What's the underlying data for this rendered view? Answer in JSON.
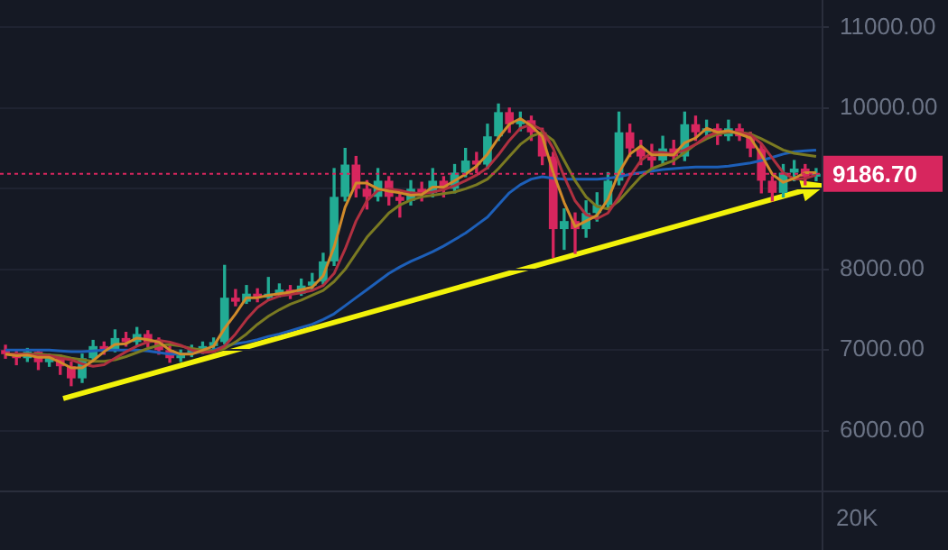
{
  "chart_data": {
    "type": "candlestick",
    "categories": [
      null,
      null,
      null,
      null,
      null,
      null,
      null,
      null,
      null,
      null,
      null,
      null,
      null,
      null,
      null,
      null,
      null,
      null,
      null,
      null,
      null,
      null,
      null,
      null,
      null,
      null,
      null,
      null,
      null,
      null,
      null,
      null,
      null,
      null,
      null,
      null,
      null,
      null,
      null,
      null,
      null,
      null,
      null,
      null,
      null,
      null,
      null,
      null,
      null,
      null,
      null,
      null,
      null,
      null,
      null,
      null,
      null,
      null,
      null,
      null,
      null,
      null,
      null,
      null,
      null,
      null,
      null,
      null,
      null,
      null,
      null,
      null,
      null,
      null,
      null
    ],
    "ohlc": [
      [
        7000,
        7060,
        6900,
        6950
      ],
      [
        6950,
        7000,
        6820,
        6900
      ],
      [
        6900,
        7020,
        6860,
        6980
      ],
      [
        6980,
        7000,
        6760,
        6850
      ],
      [
        6850,
        6950,
        6800,
        6900
      ],
      [
        6900,
        6940,
        6700,
        6800
      ],
      [
        6800,
        6850,
        6560,
        6650
      ],
      [
        6650,
        6950,
        6600,
        6900
      ],
      [
        6900,
        7120,
        6870,
        7050
      ],
      [
        7050,
        7100,
        6950,
        7000
      ],
      [
        7000,
        7250,
        6980,
        7150
      ],
      [
        7150,
        7220,
        7050,
        7100
      ],
      [
        7100,
        7280,
        7060,
        7200
      ],
      [
        7200,
        7240,
        7040,
        7100
      ],
      [
        7100,
        7150,
        6950,
        7000
      ],
      [
        7000,
        7050,
        6850,
        6900
      ],
      [
        6900,
        7000,
        6860,
        6950
      ],
      [
        6950,
        7060,
        6920,
        7000
      ],
      [
        7000,
        7100,
        6960,
        7050
      ],
      [
        7050,
        7150,
        7000,
        7100
      ],
      [
        7100,
        8050,
        7080,
        7650
      ],
      [
        7650,
        7750,
        7550,
        7600
      ],
      [
        7600,
        7800,
        7580,
        7700
      ],
      [
        7700,
        7760,
        7600,
        7650
      ],
      [
        7650,
        7900,
        7620,
        7700
      ],
      [
        7700,
        7820,
        7660,
        7750
      ],
      [
        7750,
        7800,
        7640,
        7700
      ],
      [
        7700,
        7880,
        7680,
        7800
      ],
      [
        7800,
        7950,
        7760,
        7850
      ],
      [
        7850,
        8200,
        7820,
        8100
      ],
      [
        8100,
        9250,
        8050,
        8900
      ],
      [
        8900,
        9500,
        8850,
        9300
      ],
      [
        9300,
        9400,
        8900,
        9000
      ],
      [
        9000,
        9100,
        8750,
        8900
      ],
      [
        8900,
        9250,
        8850,
        9100
      ],
      [
        9100,
        9150,
        8800,
        8900
      ],
      [
        8900,
        8950,
        8650,
        8850
      ],
      [
        8850,
        9100,
        8800,
        9000
      ],
      [
        9000,
        9080,
        8850,
        8950
      ],
      [
        8950,
        9250,
        8900,
        9100
      ],
      [
        9100,
        9150,
        8900,
        9000
      ],
      [
        9000,
        9300,
        8950,
        9200
      ],
      [
        9200,
        9500,
        9150,
        9350
      ],
      [
        9350,
        9450,
        9200,
        9300
      ],
      [
        9300,
        9800,
        9250,
        9650
      ],
      [
        9650,
        10050,
        9600,
        9950
      ],
      [
        9950,
        10000,
        9700,
        9800
      ],
      [
        9800,
        9950,
        9720,
        9850
      ],
      [
        9850,
        9900,
        9600,
        9700
      ],
      [
        9700,
        9750,
        9300,
        9400
      ],
      [
        9400,
        9450,
        8150,
        8500
      ],
      [
        8500,
        8750,
        8250,
        8600
      ],
      [
        8600,
        8700,
        8200,
        8500
      ],
      [
        8500,
        8850,
        8400,
        8700
      ],
      [
        8700,
        8950,
        8600,
        8800
      ],
      [
        8800,
        9200,
        8750,
        9100
      ],
      [
        9100,
        9950,
        9050,
        9700
      ],
      [
        9700,
        9800,
        9400,
        9500
      ],
      [
        9500,
        9600,
        9300,
        9400
      ],
      [
        9400,
        9550,
        9250,
        9350
      ],
      [
        9350,
        9650,
        9300,
        9500
      ],
      [
        9500,
        9600,
        9300,
        9400
      ],
      [
        9400,
        9950,
        9350,
        9800
      ],
      [
        9800,
        9900,
        9600,
        9700
      ],
      [
        9700,
        9850,
        9650,
        9750
      ],
      [
        9750,
        9800,
        9550,
        9650
      ],
      [
        9650,
        9850,
        9600,
        9750
      ],
      [
        9750,
        9800,
        9600,
        9650
      ],
      [
        9650,
        9700,
        9400,
        9500
      ],
      [
        9500,
        9550,
        8950,
        9100
      ],
      [
        9100,
        9150,
        8850,
        8950
      ],
      [
        8950,
        9300,
        8900,
        9200
      ],
      [
        9200,
        9350,
        9100,
        9250
      ],
      [
        9250,
        9300,
        9050,
        9150
      ],
      [
        9150,
        9250,
        9100,
        9186.7
      ]
    ],
    "colors": [
      "#d7265e",
      "#d7265e",
      "#22ab94",
      "#d7265e",
      "#22ab94",
      "#d7265e",
      "#d7265e",
      "#22ab94",
      "#22ab94",
      "#d7265e",
      "#22ab94",
      "#d7265e",
      "#22ab94",
      "#d7265e",
      "#d7265e",
      "#d7265e",
      "#22ab94",
      "#22ab94",
      "#22ab94",
      "#22ab94",
      "#22ab94",
      "#d7265e",
      "#22ab94",
      "#d7265e",
      "#22ab94",
      "#22ab94",
      "#d7265e",
      "#22ab94",
      "#22ab94",
      "#22ab94",
      "#22ab94",
      "#22ab94",
      "#d7265e",
      "#d7265e",
      "#22ab94",
      "#d7265e",
      "#d7265e",
      "#22ab94",
      "#d7265e",
      "#22ab94",
      "#d7265e",
      "#22ab94",
      "#22ab94",
      "#d7265e",
      "#22ab94",
      "#22ab94",
      "#d7265e",
      "#22ab94",
      "#d7265e",
      "#d7265e",
      "#d7265e",
      "#22ab94",
      "#d7265e",
      "#22ab94",
      "#22ab94",
      "#22ab94",
      "#22ab94",
      "#d7265e",
      "#d7265e",
      "#d7265e",
      "#22ab94",
      "#d7265e",
      "#22ab94",
      "#d7265e",
      "#22ab94",
      "#d7265e",
      "#22ab94",
      "#d7265e",
      "#d7265e",
      "#d7265e",
      "#d7265e",
      "#22ab94",
      "#22ab94",
      "#d7265e",
      "#22ab94"
    ],
    "series": [
      {
        "type": "line",
        "color": "#d08a2a",
        "values": [
          6950,
          6930,
          6940,
          6910,
          6910,
          6850,
          6780,
          6780,
          6870,
          6980,
          7070,
          7080,
          7150,
          7130,
          7100,
          7000,
          6950,
          6950,
          7000,
          7050,
          7270,
          7450,
          7650,
          7650,
          7680,
          7700,
          7720,
          7750,
          7780,
          7920,
          8280,
          8770,
          9070,
          9070,
          9000,
          8970,
          8950,
          8920,
          8930,
          9020,
          9020,
          9100,
          9180,
          9280,
          9430,
          9630,
          9800,
          9870,
          9780,
          9650,
          9200,
          8830,
          8530,
          8600,
          8670,
          8870,
          9200,
          9430,
          9530,
          9420,
          9420,
          9420,
          9570,
          9630,
          9750,
          9700,
          9720,
          9680,
          9630,
          9420,
          9180,
          9080,
          9130,
          9200,
          9200
        ]
      },
      {
        "type": "line",
        "color": "#b03040",
        "values": [
          6950,
          6950,
          6950,
          6930,
          6930,
          6900,
          6880,
          6830,
          6800,
          6820,
          6900,
          6980,
          7050,
          7100,
          7120,
          7100,
          7060,
          7000,
          6970,
          6980,
          7050,
          7200,
          7380,
          7530,
          7620,
          7670,
          7690,
          7710,
          7740,
          7800,
          7950,
          8250,
          8600,
          8850,
          8980,
          9000,
          8980,
          8950,
          8940,
          8960,
          8990,
          9040,
          9100,
          9170,
          9260,
          9420,
          9600,
          9750,
          9800,
          9730,
          9500,
          9150,
          8850,
          8680,
          8630,
          8700,
          8900,
          9150,
          9350,
          9450,
          9450,
          9430,
          9480,
          9550,
          9650,
          9700,
          9710,
          9700,
          9670,
          9560,
          9380,
          9200,
          9120,
          9130,
          9170
        ]
      },
      {
        "type": "line",
        "color": "#7a7a22",
        "values": [
          6950,
          6950,
          6950,
          6950,
          6940,
          6930,
          6900,
          6880,
          6860,
          6860,
          6880,
          6920,
          6970,
          7020,
          7060,
          7070,
          7050,
          7020,
          7000,
          6990,
          7020,
          7100,
          7200,
          7320,
          7420,
          7500,
          7570,
          7620,
          7680,
          7740,
          7850,
          8000,
          8200,
          8400,
          8550,
          8700,
          8800,
          8860,
          8900,
          8920,
          8940,
          8960,
          9000,
          9050,
          9120,
          9250,
          9400,
          9550,
          9650,
          9700,
          9600,
          9350,
          9100,
          8900,
          8780,
          8750,
          8850,
          9000,
          9150,
          9250,
          9300,
          9350,
          9450,
          9550,
          9620,
          9680,
          9700,
          9700,
          9680,
          9620,
          9550,
          9480,
          9440,
          9420,
          9400
        ]
      },
      {
        "type": "line",
        "color": "#1d5fb8",
        "values": [
          7000,
          7000,
          7000,
          7000,
          7000,
          6990,
          6980,
          6980,
          6990,
          7000,
          7000,
          7000,
          7000,
          6990,
          6970,
          6950,
          6950,
          6960,
          6980,
          7000,
          7050,
          7080,
          7100,
          7130,
          7170,
          7200,
          7240,
          7280,
          7320,
          7380,
          7450,
          7550,
          7650,
          7750,
          7850,
          7950,
          8030,
          8100,
          8160,
          8220,
          8290,
          8370,
          8450,
          8550,
          8650,
          8800,
          8950,
          9050,
          9120,
          9150,
          9130,
          9120,
          9120,
          9120,
          9120,
          9130,
          9150,
          9180,
          9200,
          9220,
          9240,
          9250,
          9260,
          9270,
          9270,
          9270,
          9280,
          9300,
          9320,
          9350,
          9390,
          9430,
          9460,
          9470,
          9480
        ]
      }
    ],
    "ylim": [
      5260,
      11340
    ],
    "yticks": [
      {
        "value": 6000,
        "label": "6000.00"
      },
      {
        "value": 7000,
        "label": "7000.00"
      },
      {
        "value": 8000,
        "label": "8000.00"
      },
      {
        "value": 9000,
        "label": null
      },
      {
        "value": 10000,
        "label": "10000.00"
      },
      {
        "value": 11000,
        "label": "11000.00"
      }
    ],
    "tick_labels": "y",
    "grid": "y",
    "legend": false,
    "ref_lines": [
      {
        "axis": "y",
        "value": 9186.7,
        "label": "9186.70",
        "color": "#d7265e",
        "line_style": "dotted"
      }
    ],
    "annotations": [
      "20K"
    ]
  }
}
